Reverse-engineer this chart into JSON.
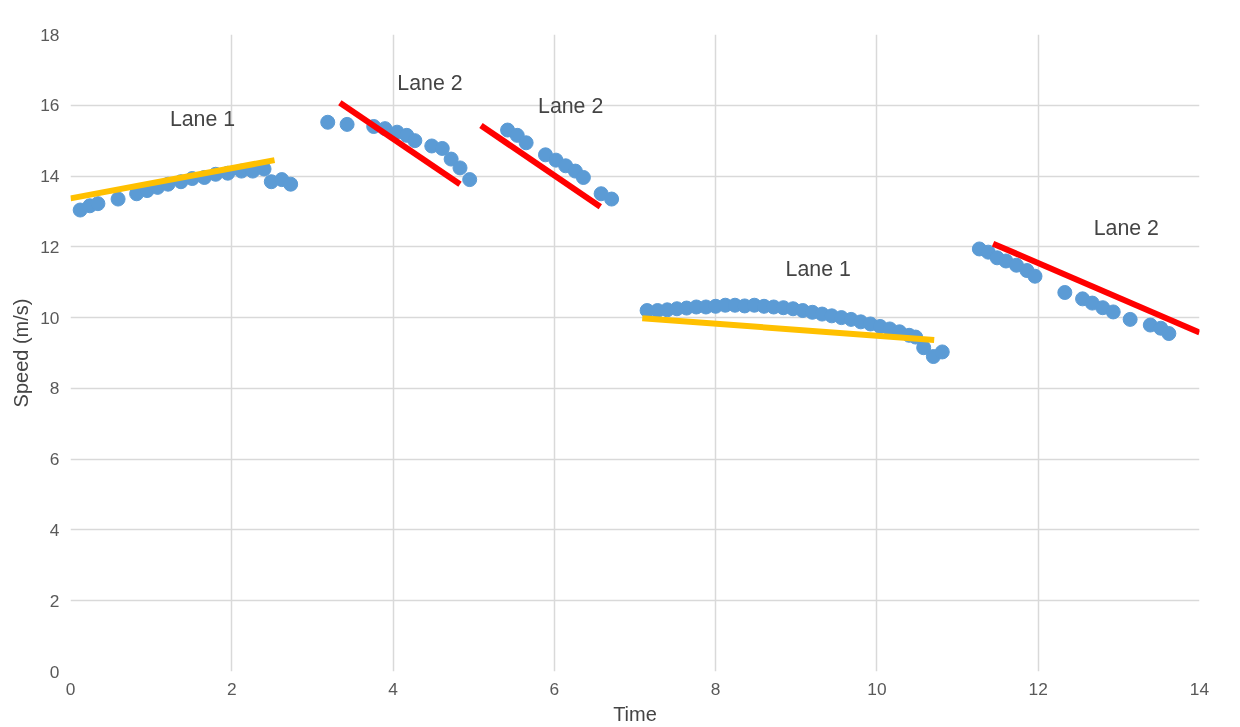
{
  "chart_data": {
    "type": "scatter",
    "xlabel": "Time",
    "ylabel": "Speed (m/s)",
    "xlim": [
      0,
      14
    ],
    "ylim": [
      0,
      18
    ],
    "xticks": [
      0,
      2,
      4,
      6,
      8,
      10,
      12,
      14
    ],
    "yticks": [
      0,
      2,
      4,
      6,
      8,
      10,
      12,
      14,
      16,
      18
    ],
    "grid": true,
    "series": [
      {
        "marker": "circle",
        "color": "#5b9bd5",
        "x": [
          0.12,
          0.24,
          0.34,
          0.59,
          0.82,
          0.95,
          1.08,
          1.21,
          1.37,
          1.51,
          1.66,
          1.8,
          1.95,
          2.12,
          2.26,
          2.4,
          2.49,
          2.62,
          2.73,
          3.19,
          3.43,
          3.76,
          3.9,
          4.05,
          4.17,
          4.27,
          4.48,
          4.61,
          4.72,
          4.83,
          4.95,
          5.42,
          5.54,
          5.65,
          5.89,
          6.02,
          6.14,
          6.26,
          6.36,
          6.58,
          6.71,
          7.15,
          7.28,
          7.4,
          7.52,
          7.64,
          7.76,
          7.88,
          8.0,
          8.12,
          8.24,
          8.36,
          8.48,
          8.6,
          8.72,
          8.84,
          8.96,
          9.08,
          9.2,
          9.32,
          9.44,
          9.56,
          9.68,
          9.8,
          9.92,
          10.04,
          10.16,
          10.28,
          10.4,
          10.48,
          10.58,
          10.7,
          10.81,
          11.27,
          11.38,
          11.49,
          11.6,
          11.73,
          11.86,
          11.96,
          12.33,
          12.55,
          12.67,
          12.8,
          12.93,
          13.14,
          13.39,
          13.52,
          13.62
        ],
        "values": [
          13.04,
          13.16,
          13.22,
          13.35,
          13.5,
          13.59,
          13.68,
          13.77,
          13.84,
          13.93,
          13.96,
          14.05,
          14.08,
          14.14,
          14.14,
          14.2,
          13.84,
          13.9,
          13.77,
          15.52,
          15.46,
          15.4,
          15.34,
          15.24,
          15.15,
          15.0,
          14.85,
          14.78,
          14.48,
          14.23,
          13.9,
          15.3,
          15.15,
          14.94,
          14.6,
          14.45,
          14.29,
          14.14,
          13.96,
          13.5,
          13.35,
          10.2,
          10.2,
          10.22,
          10.25,
          10.27,
          10.3,
          10.3,
          10.32,
          10.35,
          10.35,
          10.33,
          10.35,
          10.32,
          10.3,
          10.28,
          10.25,
          10.2,
          10.15,
          10.1,
          10.05,
          10.0,
          9.95,
          9.88,
          9.82,
          9.75,
          9.68,
          9.6,
          9.5,
          9.45,
          9.15,
          8.9,
          9.03,
          11.94,
          11.85,
          11.69,
          11.6,
          11.48,
          11.33,
          11.17,
          10.71,
          10.53,
          10.41,
          10.28,
          10.16,
          9.95,
          9.79,
          9.7,
          9.55
        ]
      },
      {
        "type": "line",
        "name": "Lane 1",
        "color": "#ffc000",
        "x": [
          0,
          2.53
        ],
        "values": [
          13.37,
          14.45
        ]
      },
      {
        "type": "line",
        "name": "Lane 2",
        "color": "#ff0000",
        "x": [
          3.34,
          4.83
        ],
        "values": [
          16.07,
          13.77
        ]
      },
      {
        "type": "line",
        "name": "Lane 2",
        "color": "#ff0000",
        "x": [
          5.09,
          6.57
        ],
        "values": [
          15.43,
          13.13
        ]
      },
      {
        "type": "line",
        "name": "Lane 1",
        "color": "#ffc000",
        "x": [
          7.09,
          10.71
        ],
        "values": [
          9.98,
          9.37
        ]
      },
      {
        "type": "line",
        "name": "Lane 2",
        "color": "#ff0000",
        "x": [
          11.44,
          14.0
        ],
        "values": [
          12.09,
          9.58
        ]
      }
    ]
  }
}
